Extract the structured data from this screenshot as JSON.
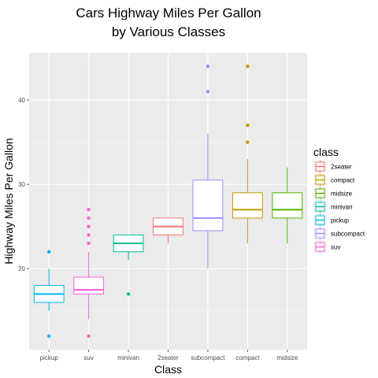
{
  "chart_data": {
    "type": "box",
    "title_lines": [
      "Cars Highway Miles Per Gallon",
      "by Various Classes"
    ],
    "xlabel": "Class",
    "ylabel": "Highway Miles Per Gallon",
    "ylim": [
      10.4,
      45.6
    ],
    "yticks": [
      20,
      30,
      40
    ],
    "grid": true,
    "legend_position": "right",
    "legend": {
      "title": "class",
      "items": [
        {
          "label": "2seater",
          "color": "#F8766D"
        },
        {
          "label": "compact",
          "color": "#C49A00"
        },
        {
          "label": "midsize",
          "color": "#53B400"
        },
        {
          "label": "minivan",
          "color": "#00C094"
        },
        {
          "label": "pickup",
          "color": "#00B6EB"
        },
        {
          "label": "subcompact",
          "color": "#A58AFF"
        },
        {
          "label": "suv",
          "color": "#FB61D7"
        }
      ]
    },
    "categories": [
      "pickup",
      "suv",
      "minivan",
      "2seater",
      "subcompact",
      "compact",
      "midsize"
    ],
    "boxes": [
      {
        "category": "pickup",
        "color": "#00B6EB",
        "whisker_low": 15,
        "q1": 16,
        "median": 17,
        "q3": 18,
        "whisker_high": 20,
        "outliers": [
          12,
          22
        ]
      },
      {
        "category": "suv",
        "color": "#FB61D7",
        "whisker_low": 14,
        "q1": 17,
        "median": 17.5,
        "q3": 19,
        "whisker_high": 22,
        "outliers": [
          12,
          23,
          24,
          25,
          26,
          27
        ]
      },
      {
        "category": "minivan",
        "color": "#00C094",
        "whisker_low": 21,
        "q1": 22,
        "median": 23,
        "q3": 24,
        "whisker_high": 24,
        "outliers": [
          17
        ]
      },
      {
        "category": "2seater",
        "color": "#F8766D",
        "whisker_low": 23,
        "q1": 24,
        "median": 25,
        "q3": 26,
        "whisker_high": 26,
        "outliers": []
      },
      {
        "category": "subcompact",
        "color": "#A58AFF",
        "whisker_low": 20,
        "q1": 24.5,
        "median": 26,
        "q3": 30.5,
        "whisker_high": 36,
        "outliers": [
          41,
          44
        ]
      },
      {
        "category": "compact",
        "color": "#C49A00",
        "whisker_low": 23,
        "q1": 26,
        "median": 27,
        "q3": 29,
        "whisker_high": 33,
        "outliers": [
          35,
          37,
          44
        ]
      },
      {
        "category": "midsize",
        "color": "#53B400",
        "whisker_low": 23,
        "q1": 26,
        "median": 27,
        "q3": 29,
        "whisker_high": 32,
        "outliers": []
      }
    ]
  }
}
